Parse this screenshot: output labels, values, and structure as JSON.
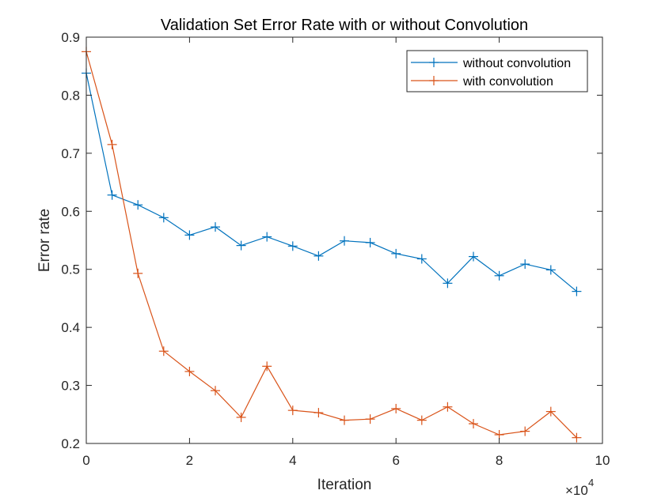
{
  "chart_data": {
    "type": "line",
    "title": "Validation Set Error Rate with or without Convolution",
    "xlabel": "Iteration",
    "ylabel": "Error rate",
    "x_exponent_label": "×10",
    "x_exponent_power": "4",
    "xlim": [
      0,
      10
    ],
    "ylim": [
      0.2,
      0.9
    ],
    "xticks": [
      "0",
      "2",
      "4",
      "6",
      "8",
      "10"
    ],
    "yticks": [
      "0.2",
      "0.3",
      "0.4",
      "0.5",
      "0.6",
      "0.7",
      "0.8",
      "0.9"
    ],
    "x": [
      0,
      0.5,
      1,
      1.5,
      2,
      2.5,
      3,
      3.5,
      4,
      4.5,
      5,
      5.5,
      6,
      6.5,
      7,
      7.5,
      8,
      8.5,
      9,
      9.5
    ],
    "series": [
      {
        "name": "without convolution",
        "color": "#0072BD",
        "values": [
          0.838,
          0.628,
          0.611,
          0.589,
          0.559,
          0.573,
          0.541,
          0.556,
          0.54,
          0.523,
          0.549,
          0.546,
          0.527,
          0.518,
          0.476,
          0.522,
          0.489,
          0.509,
          0.499,
          0.462
        ]
      },
      {
        "name": "with convolution",
        "color": "#D95319",
        "values": [
          0.875,
          0.715,
          0.493,
          0.359,
          0.324,
          0.291,
          0.245,
          0.333,
          0.257,
          0.253,
          0.24,
          0.242,
          0.26,
          0.24,
          0.263,
          0.234,
          0.215,
          0.221,
          0.255,
          0.21
        ]
      }
    ],
    "legend_position": "top-right",
    "marker": "+",
    "grid": false
  }
}
